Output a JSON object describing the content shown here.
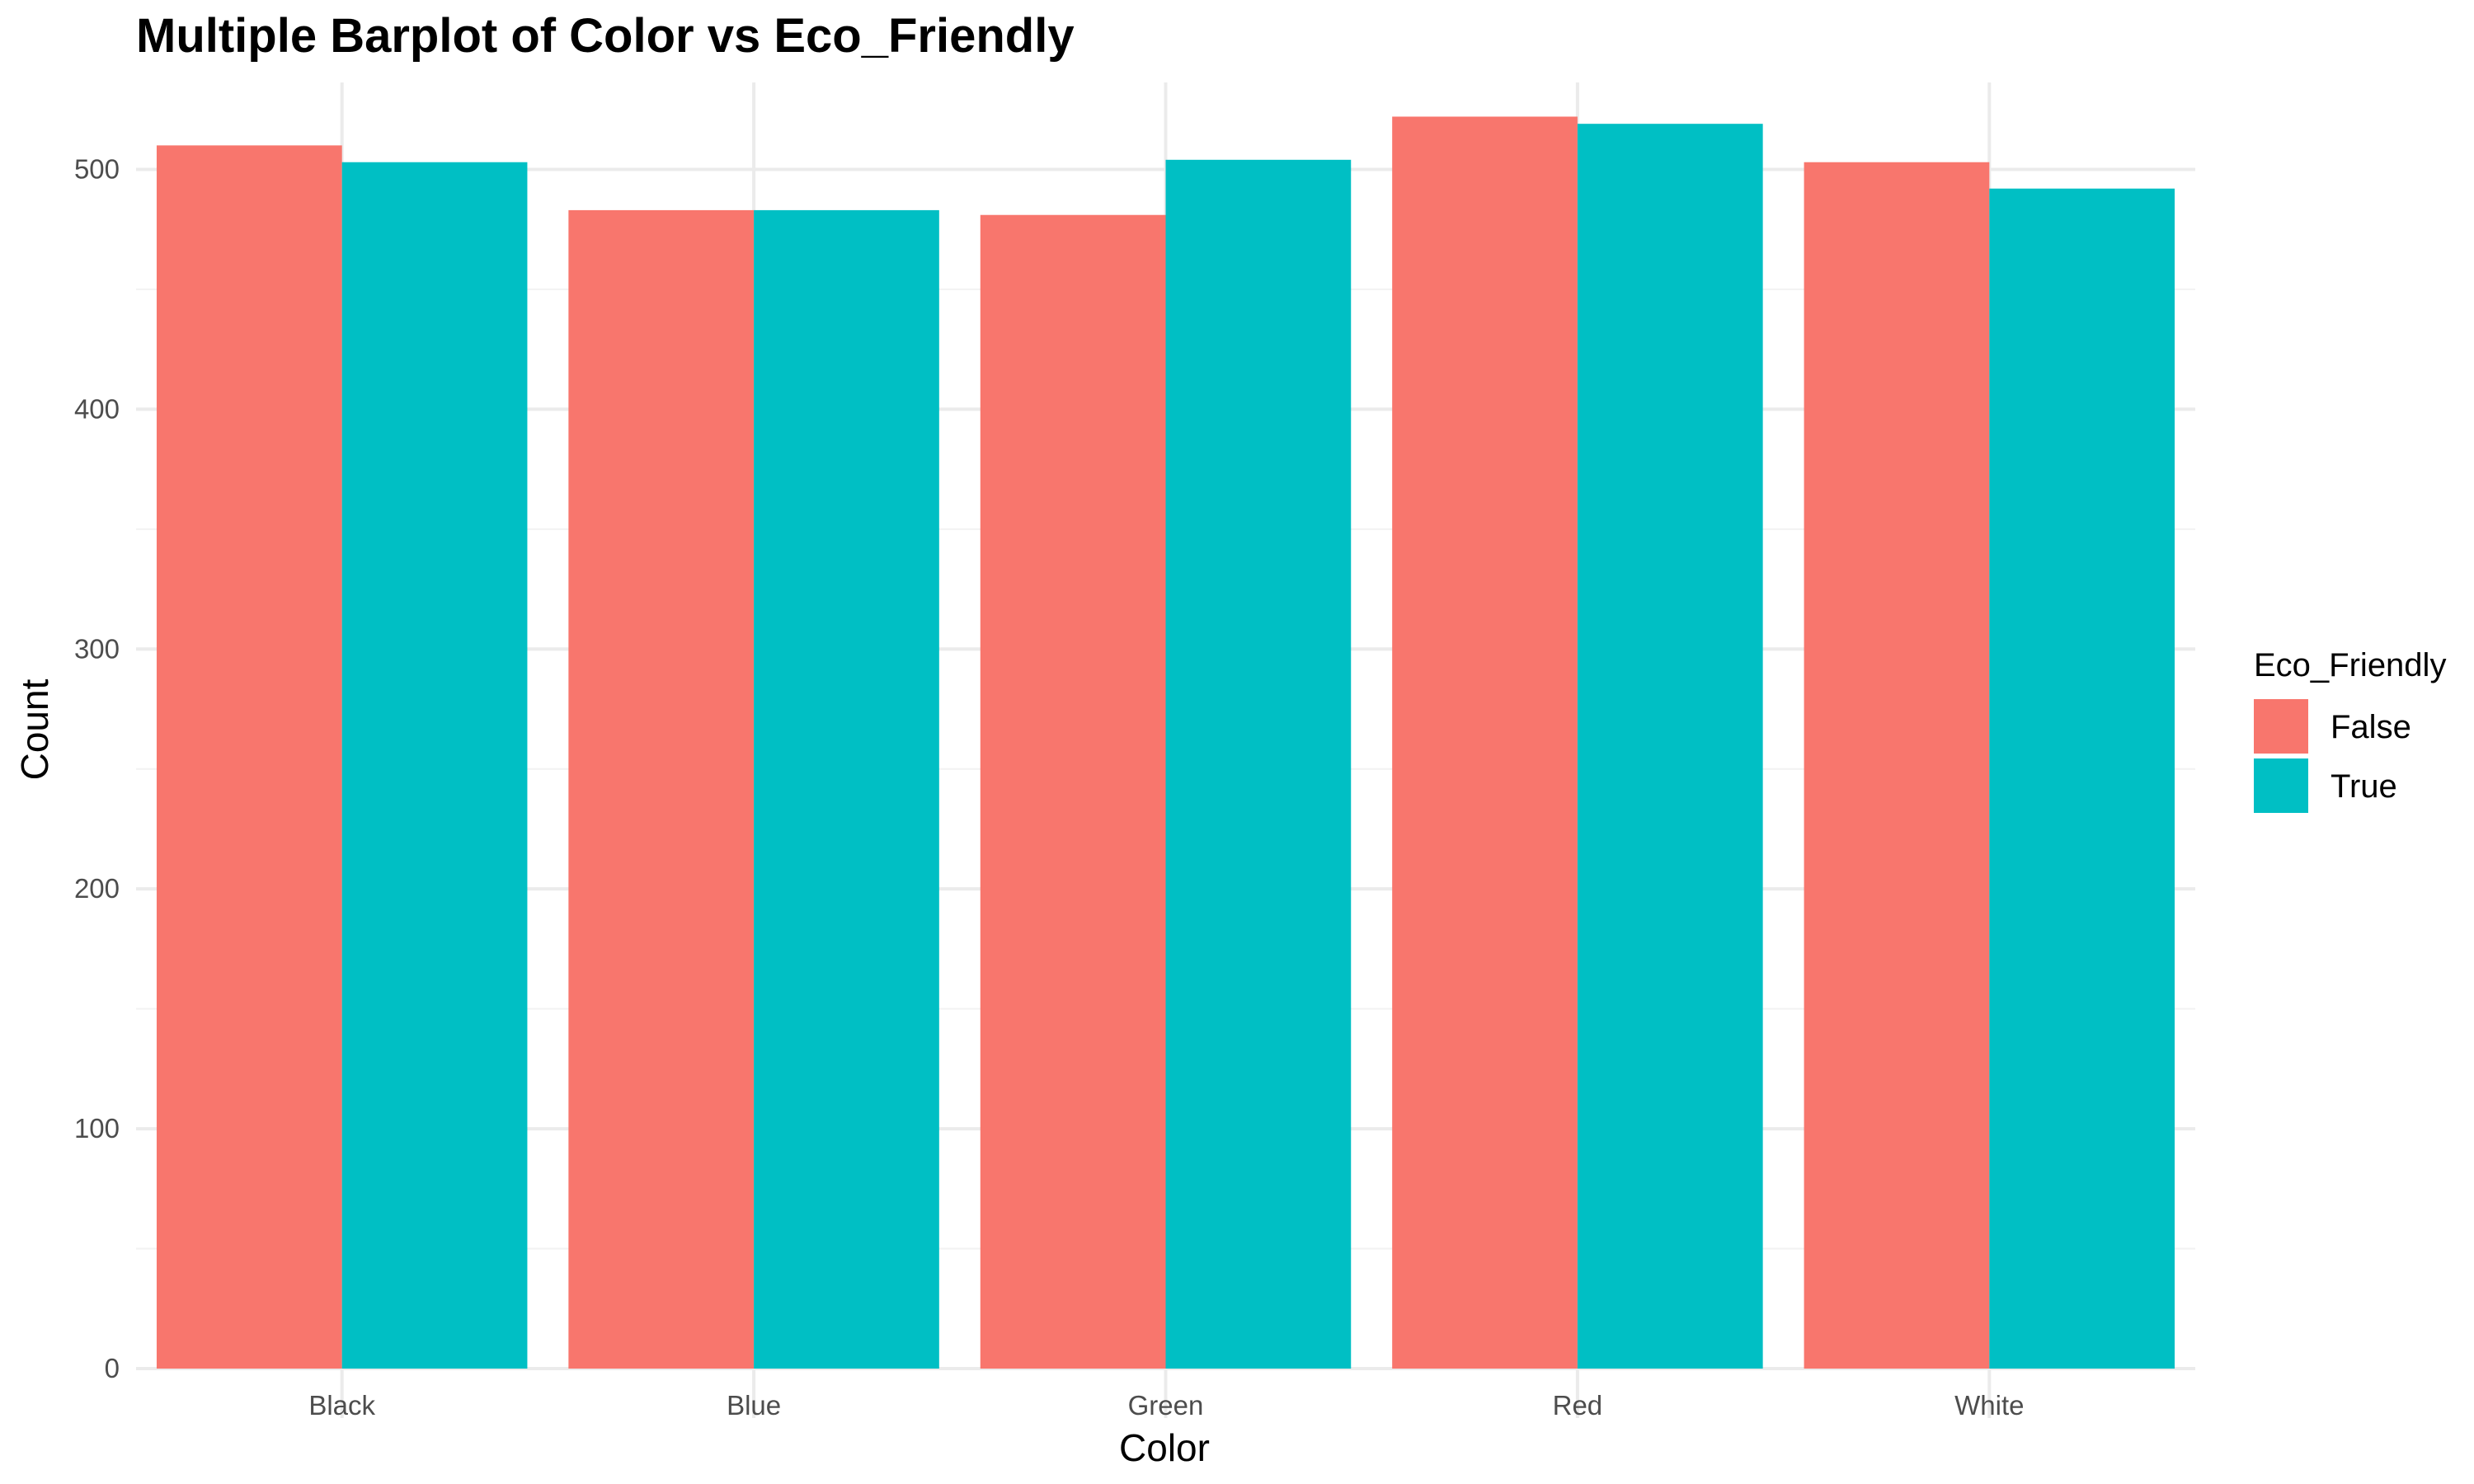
{
  "chart_data": {
    "type": "bar",
    "title": "Multiple Barplot of Color vs Eco_Friendly",
    "xlabel": "Color",
    "ylabel": "Count",
    "categories": [
      "Black",
      "Blue",
      "Green",
      "Red",
      "White"
    ],
    "series": [
      {
        "name": "False",
        "color": "#F8766D",
        "values": [
          510,
          483,
          481,
          522,
          503
        ]
      },
      {
        "name": "True",
        "color": "#00BFC4",
        "values": [
          503,
          483,
          504,
          519,
          492
        ]
      }
    ],
    "ylim": [
      0,
      550
    ],
    "yticks": [
      0,
      100,
      200,
      300,
      400,
      500
    ],
    "grid": true,
    "legend": {
      "title": "Eco_Friendly",
      "position": "right"
    }
  }
}
